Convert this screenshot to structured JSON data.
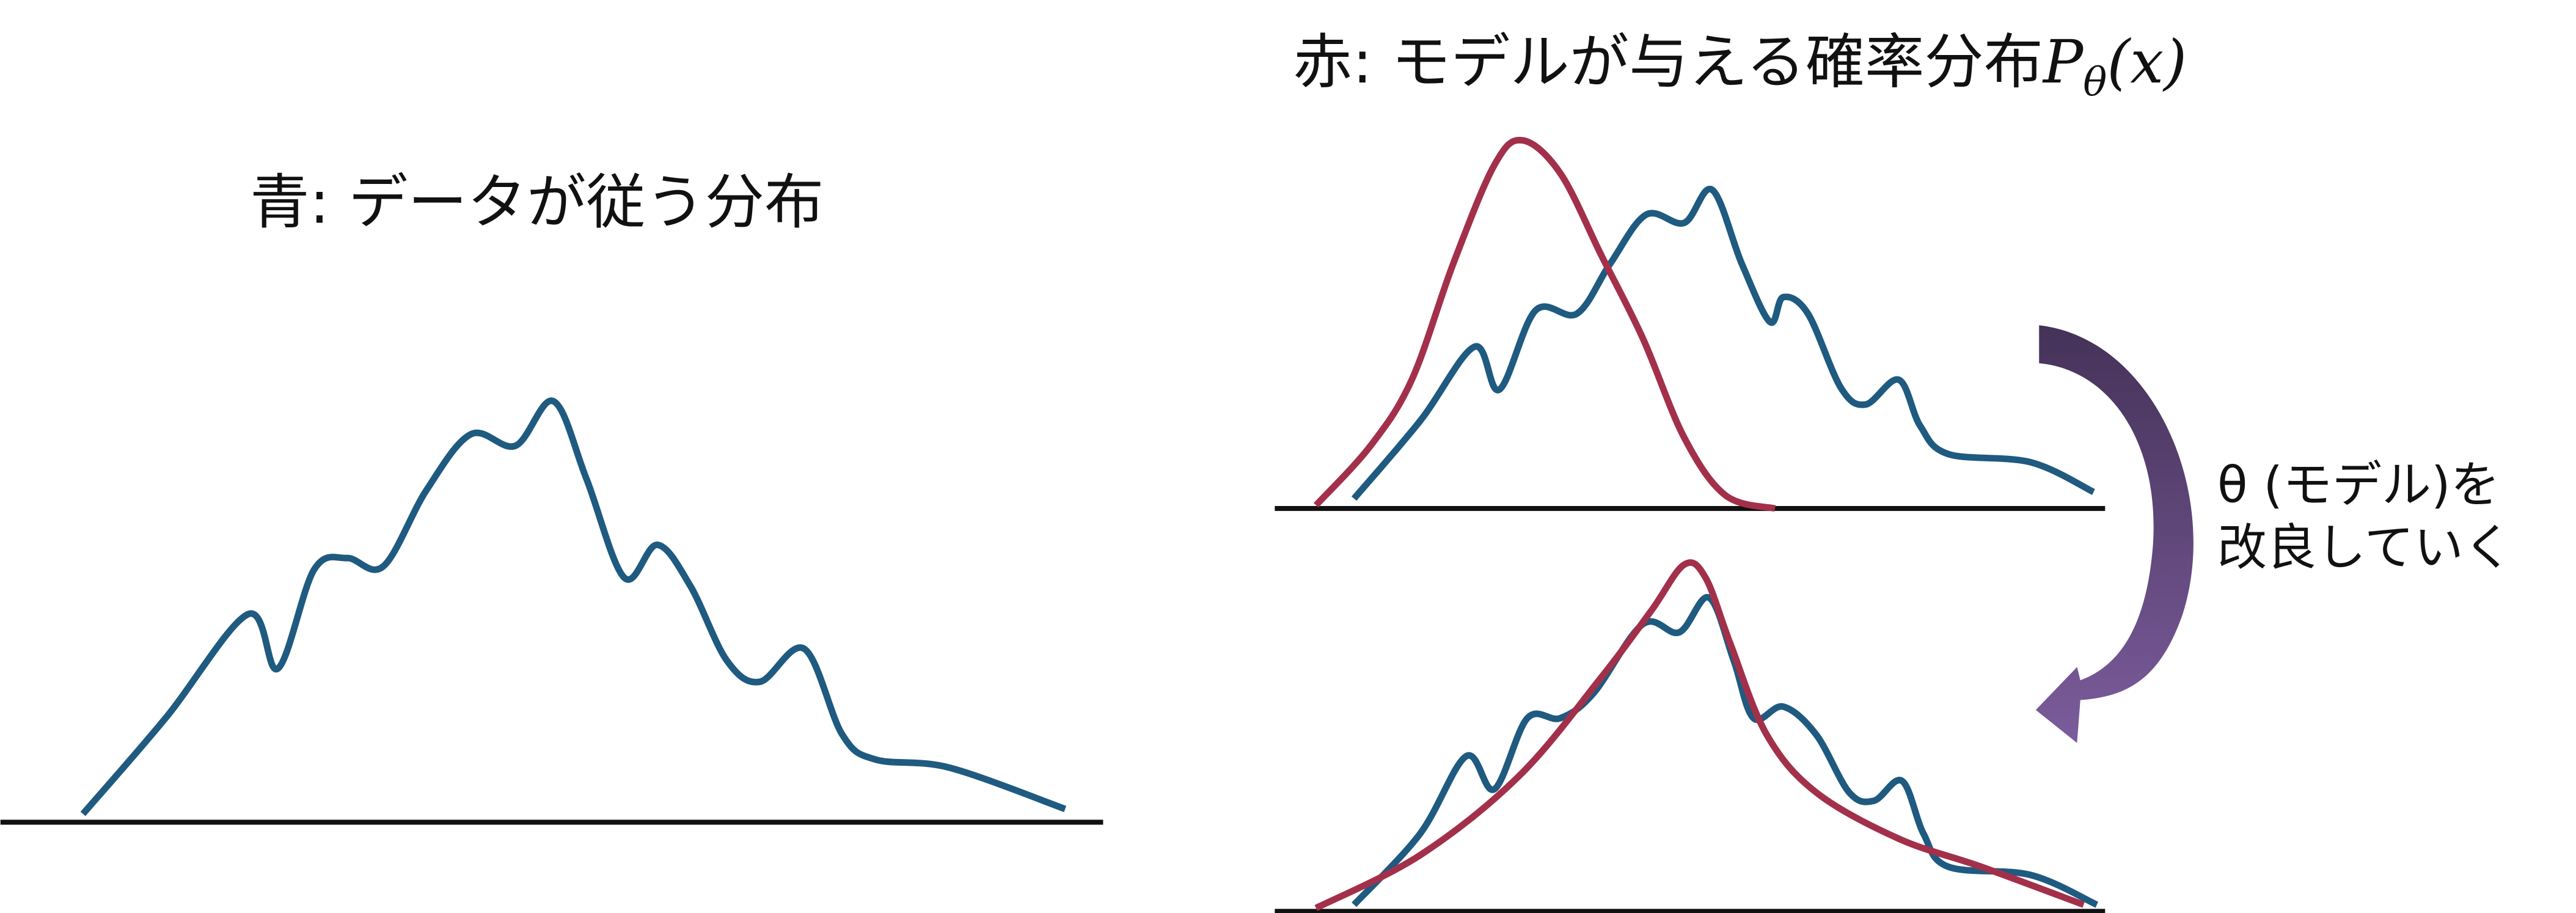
{
  "left": {
    "title": "青: データが従う分布"
  },
  "right": {
    "title": "赤: モデルが与える確率分布",
    "formula_symbol": "P",
    "formula_subscript": "θ",
    "formula_args": "(x)"
  },
  "arrow_label": {
    "line1": "θ (モデル)を",
    "line2": "改良していく"
  }
}
